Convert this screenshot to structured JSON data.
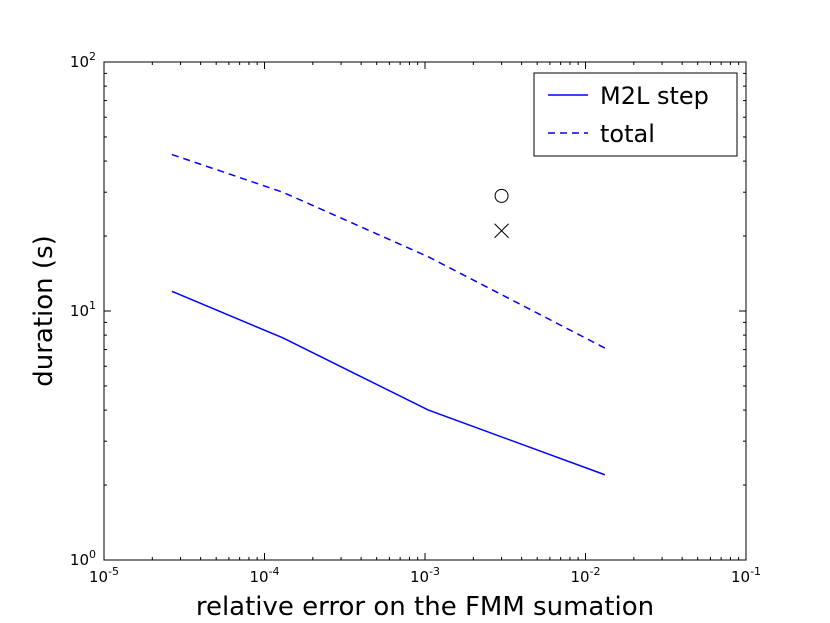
{
  "chart_data": {
    "type": "line",
    "xlabel": "relative error on the FMM sumation",
    "ylabel": "duration (s)",
    "xscale": "log",
    "yscale": "log",
    "xlim": [
      1e-05,
      0.1
    ],
    "ylim": [
      1,
      100
    ],
    "x_ticks": [
      {
        "base": "10",
        "exp": "-5",
        "value": 1e-05
      },
      {
        "base": "10",
        "exp": "-4",
        "value": 0.0001
      },
      {
        "base": "10",
        "exp": "-3",
        "value": 0.001
      },
      {
        "base": "10",
        "exp": "-2",
        "value": 0.01
      },
      {
        "base": "10",
        "exp": "-1",
        "value": 0.1
      }
    ],
    "y_ticks": [
      {
        "base": "10",
        "exp": "0",
        "value": 1
      },
      {
        "base": "10",
        "exp": "1",
        "value": 10
      },
      {
        "base": "10",
        "exp": "2",
        "value": 100
      }
    ],
    "series": [
      {
        "name": "M2L step",
        "style": "solid",
        "color": "#0000ff",
        "x": [
          2.65e-05,
          0.00013,
          0.00105,
          0.0132
        ],
        "y": [
          12.0,
          7.8,
          4.0,
          2.2
        ]
      },
      {
        "name": "total",
        "style": "dashed",
        "color": "#0000ff",
        "x": [
          2.65e-05,
          0.00013,
          0.00105,
          0.0132
        ],
        "y": [
          42.5,
          30.0,
          16.5,
          7.1
        ]
      }
    ],
    "markers": [
      {
        "symbol": "circle",
        "x": 0.003,
        "y": 29.0
      },
      {
        "symbol": "x",
        "x": 0.003,
        "y": 21.0
      }
    ],
    "legend": {
      "position": "top-right"
    },
    "grid": false
  }
}
